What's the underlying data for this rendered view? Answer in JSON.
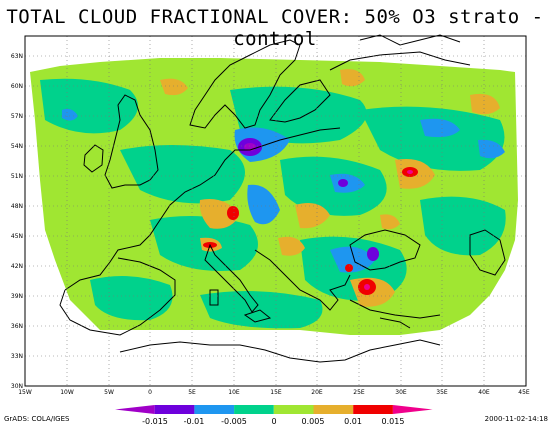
{
  "title": "TOTAL CLOUD FRACTIONAL COVER: 50% O3 strato - control",
  "axes": {
    "lon_labels": [
      "15W",
      "10W",
      "5W",
      "0",
      "5E",
      "10E",
      "15E",
      "20E",
      "25E",
      "30E",
      "35E",
      "40E",
      "45E"
    ],
    "lat_labels": [
      "30N",
      "33N",
      "36N",
      "39N",
      "42N",
      "45N",
      "48N",
      "51N",
      "54N",
      "57N",
      "60N",
      "63N"
    ],
    "lon_range": [
      -15,
      45
    ],
    "lat_range": [
      30,
      65
    ]
  },
  "colorbar": {
    "colors": [
      "#a000c8",
      "#6e00dc",
      "#1e96f0",
      "#00d28c",
      "#a0e632",
      "#e6af2d",
      "#f00000",
      "#f0008c"
    ],
    "labels": [
      "-0.015",
      "-0.01",
      "-0.005",
      "0",
      "0.005",
      "0.01",
      "0.015"
    ]
  },
  "footer": {
    "left": "GrADS: COLA/IGES",
    "right": "2000-11-02-14:18"
  },
  "features": [
    {
      "name": "negative-min-north-germany",
      "lon": 12,
      "lat": 54,
      "level": 0
    },
    {
      "name": "negative-min-ukraine",
      "lon": 26,
      "lat": 51,
      "level": 1
    },
    {
      "name": "negative-min-black-sea",
      "lon": 27,
      "lat": 43,
      "level": 1
    },
    {
      "name": "positive-max-switzerland",
      "lon": 10,
      "lat": 47.5,
      "level": 6
    },
    {
      "name": "positive-max-russia",
      "lon": 31,
      "lat": 51.5,
      "level": 6
    },
    {
      "name": "positive-max-balkans",
      "lon": 27,
      "lat": 39.5,
      "level": 6
    }
  ]
}
